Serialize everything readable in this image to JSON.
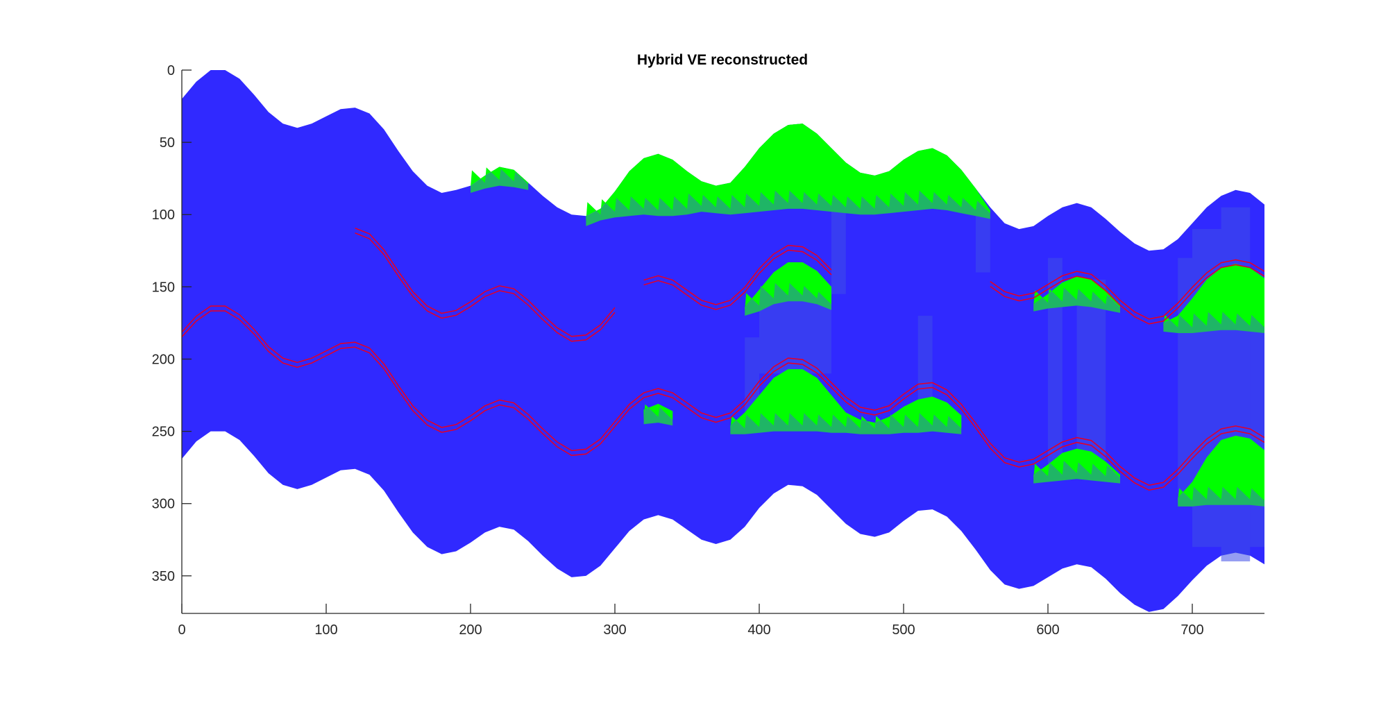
{
  "chart_data": {
    "type": "area",
    "title": "Hybrid VE reconstructed",
    "xlabel": "",
    "ylabel": "",
    "xlim": [
      0,
      750
    ],
    "ylim": [
      0,
      376
    ],
    "y_reversed": true,
    "grid": false,
    "x_ticks": [
      0,
      100,
      200,
      300,
      400,
      500,
      600,
      700
    ],
    "y_ticks": [
      0,
      50,
      100,
      150,
      200,
      250,
      300,
      350
    ],
    "colors": {
      "formation": "#3029ff",
      "plume": "#00ff00",
      "plume_edge": "#1fb566",
      "column": "#3f4fe8",
      "contour": "#e0002a"
    },
    "series": [
      {
        "role": "top-surface",
        "x": [
          0,
          10,
          20,
          30,
          40,
          50,
          60,
          70,
          80,
          90,
          100,
          110,
          120,
          130,
          140,
          150,
          160,
          170,
          180,
          190,
          200,
          210,
          220,
          230,
          240,
          250,
          260,
          270,
          280,
          290,
          300,
          310,
          320,
          330,
          340,
          350,
          360,
          370,
          380,
          390,
          400,
          410,
          420,
          430,
          440,
          450,
          460,
          470,
          480,
          490,
          500,
          510,
          520,
          530,
          540,
          550,
          560,
          570,
          580,
          590,
          600,
          610,
          620,
          630,
          640,
          650,
          660,
          670,
          680,
          690,
          700,
          710,
          720,
          730,
          740,
          750
        ],
        "y": [
          20,
          8,
          0,
          0,
          6,
          17,
          29,
          37,
          40,
          37,
          32,
          27,
          26,
          30,
          41,
          56,
          70,
          80,
          85,
          83,
          80,
          73,
          67,
          69,
          78,
          87,
          95,
          100,
          101,
          96,
          84,
          70,
          61,
          58,
          62,
          70,
          77,
          80,
          78,
          67,
          54,
          44,
          38,
          37,
          44,
          54,
          64,
          71,
          73,
          70,
          62,
          56,
          54,
          59,
          69,
          82,
          95,
          106,
          110,
          108,
          101,
          95,
          92,
          95,
          103,
          112,
          120,
          125,
          124,
          117,
          106,
          95,
          87,
          83,
          85,
          93
        ]
      },
      {
        "role": "bottom-surface",
        "x": [
          0,
          10,
          20,
          30,
          40,
          50,
          60,
          70,
          80,
          90,
          100,
          110,
          120,
          130,
          140,
          150,
          160,
          170,
          180,
          190,
          200,
          210,
          220,
          230,
          240,
          250,
          260,
          270,
          280,
          290,
          300,
          310,
          320,
          330,
          340,
          350,
          360,
          370,
          380,
          390,
          400,
          410,
          420,
          430,
          440,
          450,
          460,
          470,
          480,
          490,
          500,
          510,
          520,
          530,
          540,
          550,
          560,
          570,
          580,
          590,
          600,
          610,
          620,
          630,
          640,
          650,
          660,
          670,
          680,
          690,
          700,
          710,
          720,
          730,
          740,
          750
        ],
        "y": [
          269,
          257,
          250,
          250,
          256,
          267,
          279,
          287,
          290,
          287,
          282,
          277,
          276,
          280,
          291,
          306,
          320,
          330,
          335,
          333,
          327,
          320,
          316,
          318,
          326,
          336,
          345,
          351,
          350,
          343,
          331,
          319,
          311,
          308,
          311,
          318,
          325,
          328,
          325,
          316,
          303,
          293,
          287,
          288,
          294,
          304,
          314,
          321,
          323,
          320,
          312,
          305,
          304,
          309,
          319,
          332,
          346,
          356,
          359,
          357,
          351,
          345,
          342,
          344,
          352,
          362,
          370,
          375,
          373,
          364,
          353,
          343,
          336,
          334,
          336,
          342
        ]
      },
      {
        "role": "plume",
        "x": [
          280,
          290,
          300,
          310,
          320,
          330,
          340,
          350,
          360,
          370,
          380,
          390,
          400,
          410,
          420,
          430,
          440,
          450,
          460,
          470,
          480,
          490,
          500,
          510,
          520,
          530,
          540,
          550,
          560
        ],
        "y": [
          101,
          96,
          84,
          70,
          61,
          58,
          62,
          70,
          77,
          80,
          78,
          67,
          54,
          44,
          38,
          37,
          44,
          54,
          64,
          71,
          73,
          70,
          62,
          56,
          54,
          59,
          69,
          82,
          97
        ],
        "y_bottom": [
          104,
          100,
          98,
          97,
          96,
          97,
          97,
          96,
          94,
          95,
          96,
          95,
          94,
          93,
          92,
          92,
          93,
          94,
          95,
          96,
          96,
          95,
          94,
          93,
          92,
          93,
          95,
          97,
          99
        ]
      },
      {
        "role": "plume",
        "x": [
          200,
          210,
          220,
          230,
          240
        ],
        "y": [
          80,
          73,
          67,
          69,
          78
        ],
        "y_bottom": [
          81,
          78,
          76,
          77,
          79
        ]
      },
      {
        "role": "plume",
        "x": [
          390,
          400,
          410,
          420,
          430,
          440,
          450
        ],
        "y": [
          164,
          152,
          140,
          133,
          133,
          139,
          150
        ],
        "y_bottom": [
          166,
          163,
          158,
          156,
          156,
          158,
          162
        ]
      },
      {
        "role": "plume",
        "x": [
          590,
          600,
          610,
          620,
          630,
          640,
          650
        ],
        "y": [
          162,
          155,
          147,
          143,
          145,
          152,
          162
        ],
        "y_bottom": [
          163,
          161,
          160,
          159,
          160,
          162,
          164
        ]
      },
      {
        "role": "plume",
        "x": [
          680,
          690,
          700,
          710,
          720,
          730,
          740,
          750
        ],
        "y": [
          175,
          170,
          158,
          145,
          137,
          134,
          137,
          144
        ],
        "y_bottom": [
          177,
          178,
          178,
          177,
          176,
          176,
          177,
          178
        ]
      },
      {
        "role": "plume",
        "x": [
          320,
          330,
          340
        ],
        "y": [
          235,
          231,
          236
        ],
        "y_bottom": [
          241,
          240,
          242
        ]
      },
      {
        "role": "plume",
        "x": [
          380,
          390,
          400,
          410,
          420,
          430,
          440,
          450,
          460,
          470,
          480,
          490,
          500,
          510,
          520,
          530,
          540
        ],
        "y": [
          246,
          237,
          225,
          213,
          207,
          207,
          213,
          225,
          237,
          242,
          244,
          240,
          233,
          228,
          226,
          230,
          239
        ],
        "y_bottom": [
          248,
          248,
          247,
          246,
          246,
          246,
          246,
          247,
          247,
          248,
          248,
          248,
          247,
          247,
          246,
          247,
          248
        ]
      },
      {
        "role": "plume",
        "x": [
          590,
          600,
          610,
          620,
          630,
          640,
          650
        ],
        "y": [
          280,
          273,
          265,
          262,
          264,
          271,
          280
        ],
        "y_bottom": [
          282,
          281,
          280,
          279,
          280,
          281,
          282
        ]
      },
      {
        "role": "plume",
        "x": [
          690,
          700,
          710,
          720,
          730,
          740,
          750
        ],
        "y": [
          296,
          285,
          268,
          256,
          253,
          255,
          263
        ],
        "y_bottom": [
          298,
          298,
          297,
          297,
          297,
          297,
          298
        ]
      },
      {
        "role": "contour",
        "x": [
          0,
          10,
          20,
          30,
          40,
          50,
          60,
          70,
          80,
          90,
          100,
          110,
          120,
          130,
          140,
          150,
          160,
          170,
          180,
          190,
          200,
          210,
          220,
          230,
          240,
          250,
          260,
          270,
          280,
          290,
          300,
          310,
          320,
          330,
          340,
          350,
          360,
          370,
          380,
          390,
          400,
          410,
          420,
          430,
          440,
          450,
          460,
          470,
          480,
          490,
          500,
          510,
          520,
          530,
          540,
          550,
          560,
          570,
          580,
          590,
          600,
          610,
          620,
          630,
          640,
          650,
          660,
          670,
          680,
          690,
          700,
          710,
          720,
          730,
          740,
          750
        ],
        "y": [
          183,
          172,
          165,
          165,
          171,
          181,
          193,
          201,
          204,
          201,
          196,
          191,
          190,
          194,
          205,
          220,
          234,
          244,
          249,
          247,
          241,
          234,
          230,
          232,
          240,
          250,
          259,
          265,
          264,
          257,
          245,
          233,
          225,
          222,
          225,
          232,
          239,
          242,
          239,
          230,
          217,
          207,
          201,
          202,
          208,
          218,
          228,
          235,
          237,
          234,
          226,
          219,
          218,
          223,
          233,
          246,
          260,
          270,
          273,
          271,
          265,
          259,
          256,
          258,
          266,
          276,
          284,
          289,
          287,
          278,
          267,
          257,
          250,
          248,
          250,
          256
        ]
      },
      {
        "role": "contour",
        "x": [
          120,
          130,
          140,
          150,
          160,
          170,
          180,
          190,
          200,
          210,
          220,
          230,
          240,
          250,
          260,
          270,
          280,
          290,
          300
        ],
        "y": [
          111,
          115,
          126,
          141,
          155,
          165,
          170,
          168,
          162,
          155,
          151,
          153,
          161,
          171,
          180,
          186,
          185,
          178,
          166
        ]
      },
      {
        "role": "contour",
        "x": [
          320,
          330,
          340,
          350,
          360,
          370,
          380,
          390,
          400,
          410,
          420,
          430,
          440,
          450
        ],
        "y": [
          147,
          144,
          147,
          154,
          161,
          164,
          161,
          152,
          139,
          129,
          123,
          124,
          130,
          140
        ]
      },
      {
        "role": "contour",
        "x": [
          560,
          570,
          580,
          590,
          600,
          610,
          620,
          630,
          640,
          650,
          660,
          670,
          680,
          690,
          700,
          710,
          720,
          730,
          740,
          750
        ],
        "y": [
          148,
          155,
          158,
          156,
          150,
          144,
          141,
          143,
          151,
          161,
          169,
          174,
          172,
          163,
          152,
          142,
          135,
          133,
          135,
          141
        ]
      }
    ]
  }
}
